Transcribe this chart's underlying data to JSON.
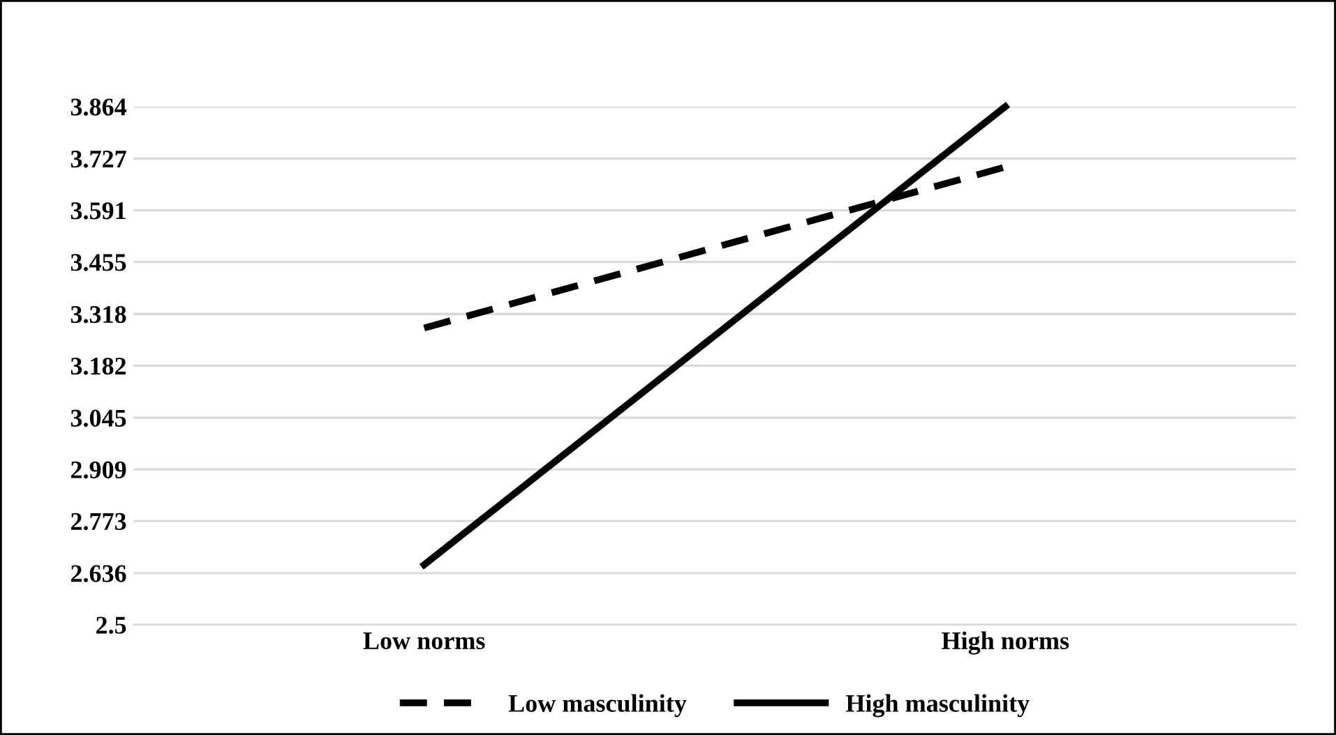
{
  "chart_data": {
    "type": "line",
    "categories": [
      "Low norms",
      "High norms"
    ],
    "series": [
      {
        "name": "Low masculinity",
        "color": "#000000",
        "line_style": "dashed",
        "values": [
          3.281,
          3.705
        ]
      },
      {
        "name": "High masculinity",
        "color": "#000000",
        "line_style": "solid",
        "values": [
          2.658,
          3.864
        ]
      }
    ],
    "ylim": [
      2.5,
      3.864
    ],
    "yticks": [
      2.5,
      2.636,
      2.773,
      2.909,
      3.045,
      3.182,
      3.318,
      3.455,
      3.591,
      3.727,
      3.864
    ],
    "grid": "y",
    "legend": "bottom",
    "marker": "none"
  }
}
